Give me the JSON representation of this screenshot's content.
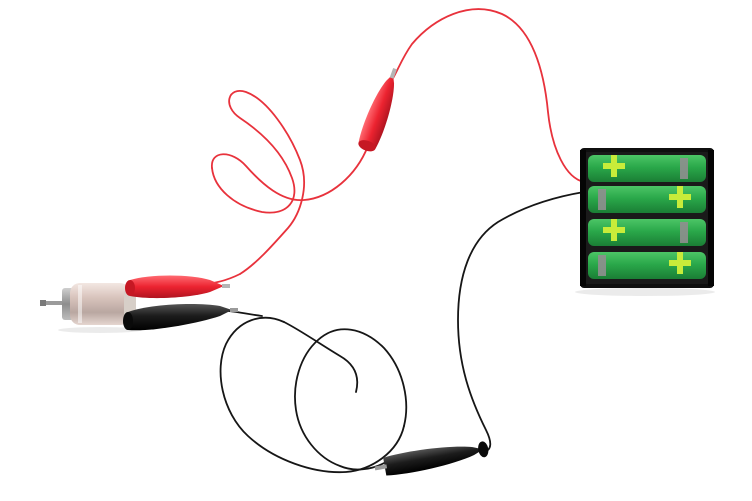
{
  "scene": {
    "objects": [
      {
        "id": "motor",
        "name": "dc-motor"
      },
      {
        "id": "red_clip_motor",
        "name": "red-alligator-clip"
      },
      {
        "id": "black_clip_motor",
        "name": "black-alligator-clip"
      },
      {
        "id": "red_clip_middle",
        "name": "red-alligator-clip"
      },
      {
        "id": "black_clip_bottom",
        "name": "black-alligator-clip"
      },
      {
        "id": "battery_holder",
        "name": "battery-holder",
        "cells": 4
      }
    ],
    "colors": {
      "background": "#ffffff",
      "red_wire": "#e8323c",
      "red_clip": "#ec2330",
      "black_wire": "#161616",
      "black_clip": "#1c1c1c",
      "battery_green": "#2aa84a",
      "battery_plus": "#c8ec3a",
      "battery_negative_band": "#8f8f8f",
      "holder_black": "#0f0f0f",
      "motor_metal": "#d9c9c2"
    }
  }
}
